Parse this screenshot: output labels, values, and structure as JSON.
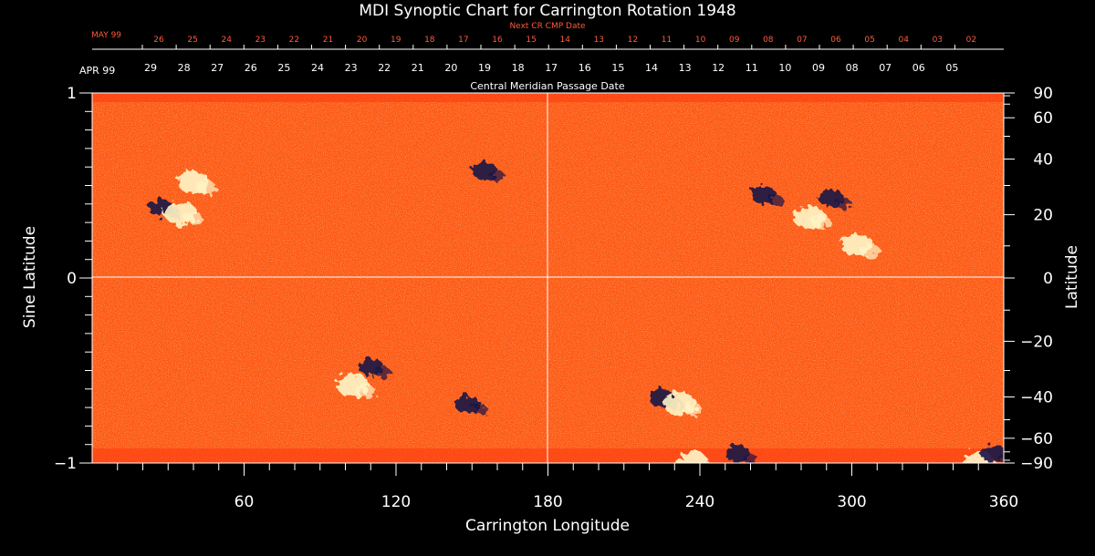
{
  "chart_data": {
    "type": "heatmap",
    "title": "MDI Synoptic Chart for Carrington Rotation 1948",
    "xlabel": "Carrington Longitude",
    "ylabel_left": "Sine Latitude",
    "ylabel_right": "Latitude",
    "xlim": [
      0,
      360
    ],
    "ylim": [
      -1,
      1
    ],
    "x_ticks": [
      60,
      120,
      180,
      240,
      300,
      360
    ],
    "y_ticks_left": [
      -1,
      0,
      1
    ],
    "y_ticks_right": [
      90,
      60,
      40,
      20,
      0,
      -20,
      -40,
      -60,
      -90
    ],
    "grid": {
      "crosshair_x": 180,
      "crosshair_y": 0
    },
    "top_axis_cmp": {
      "month_label": "APR 99",
      "title": "Central Meridian Passage Date",
      "day_labels": [
        "29",
        "28",
        "27",
        "26",
        "25",
        "24",
        "23",
        "22",
        "21",
        "20",
        "19",
        "18",
        "17",
        "16",
        "15",
        "14",
        "13",
        "12",
        "11",
        "10",
        "09",
        "08",
        "07",
        "06",
        "05"
      ]
    },
    "top_axis_next_cmp": {
      "month_label": "MAY 99",
      "title": "Next CR CMP Date",
      "day_labels": [
        "26",
        "25",
        "24",
        "23",
        "22",
        "21",
        "20",
        "19",
        "18",
        "17",
        "16",
        "15",
        "14",
        "13",
        "12",
        "11",
        "10",
        "09",
        "08",
        "07",
        "06",
        "05",
        "04",
        "03",
        "02"
      ]
    },
    "colors": {
      "background_field": "#ff5a14",
      "positive": "#fff6c8",
      "negative": "#1a1446"
    },
    "magnetic_regions": [
      {
        "lon": 27,
        "sinlat": 0.38,
        "polarity": "negative"
      },
      {
        "lon": 35,
        "sinlat": 0.35,
        "polarity": "positive"
      },
      {
        "lon": 40,
        "sinlat": 0.52,
        "polarity": "positive"
      },
      {
        "lon": 110,
        "sinlat": -0.48,
        "polarity": "negative"
      },
      {
        "lon": 103,
        "sinlat": -0.58,
        "polarity": "positive"
      },
      {
        "lon": 148,
        "sinlat": -0.68,
        "polarity": "negative"
      },
      {
        "lon": 155,
        "sinlat": 0.58,
        "polarity": "negative"
      },
      {
        "lon": 265,
        "sinlat": 0.45,
        "polarity": "negative"
      },
      {
        "lon": 283,
        "sinlat": 0.33,
        "polarity": "positive"
      },
      {
        "lon": 302,
        "sinlat": 0.18,
        "polarity": "positive"
      },
      {
        "lon": 292,
        "sinlat": 0.43,
        "polarity": "negative"
      },
      {
        "lon": 225,
        "sinlat": -0.65,
        "polarity": "negative"
      },
      {
        "lon": 232,
        "sinlat": -0.68,
        "polarity": "positive"
      },
      {
        "lon": 255,
        "sinlat": -0.95,
        "polarity": "negative"
      },
      {
        "lon": 237,
        "sinlat": -1.1,
        "polarity": "positive"
      },
      {
        "lon": 350,
        "sinlat": -1.0,
        "polarity": "positive"
      },
      {
        "lon": 356,
        "sinlat": -0.95,
        "polarity": "negative"
      }
    ]
  }
}
